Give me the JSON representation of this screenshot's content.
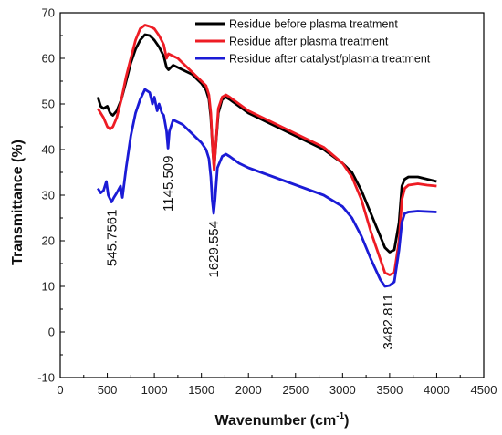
{
  "chart_data": {
    "type": "line",
    "xlabel": "Wavenumber (cm",
    "xlabel_sup": "-1",
    "xlabel_close": ")",
    "ylabel": "Transmittance (%)",
    "xlim": [
      0,
      4500
    ],
    "ylim": [
      -10,
      70
    ],
    "x_ticks": [
      0,
      500,
      1000,
      1500,
      2000,
      2500,
      3000,
      3500,
      4000,
      4500
    ],
    "y_ticks": [
      -10,
      0,
      10,
      20,
      30,
      40,
      50,
      60,
      70
    ],
    "grid": false,
    "legend_position": "top-right",
    "series": [
      {
        "name": "Residue before plasma treatment",
        "color": "#000000",
        "points": [
          [
            400,
            51.5
          ],
          [
            430,
            49.5
          ],
          [
            460,
            49
          ],
          [
            500,
            49.5
          ],
          [
            530,
            48
          ],
          [
            560,
            47.5
          ],
          [
            600,
            48.5
          ],
          [
            650,
            51
          ],
          [
            700,
            55
          ],
          [
            750,
            59
          ],
          [
            800,
            62
          ],
          [
            850,
            64
          ],
          [
            900,
            65.2
          ],
          [
            950,
            65
          ],
          [
            1000,
            64
          ],
          [
            1050,
            62.5
          ],
          [
            1100,
            60.5
          ],
          [
            1130,
            58
          ],
          [
            1150,
            57.5
          ],
          [
            1200,
            58.5
          ],
          [
            1250,
            58
          ],
          [
            1300,
            57.5
          ],
          [
            1350,
            57
          ],
          [
            1400,
            56.5
          ],
          [
            1450,
            55.5
          ],
          [
            1500,
            54.5
          ],
          [
            1550,
            53
          ],
          [
            1580,
            51
          ],
          [
            1600,
            47
          ],
          [
            1620,
            40
          ],
          [
            1635,
            36
          ],
          [
            1650,
            40
          ],
          [
            1680,
            48
          ],
          [
            1720,
            51
          ],
          [
            1760,
            51.5
          ],
          [
            1800,
            51
          ],
          [
            1900,
            49.5
          ],
          [
            2000,
            48
          ],
          [
            2200,
            46
          ],
          [
            2400,
            44
          ],
          [
            2600,
            42
          ],
          [
            2800,
            40
          ],
          [
            3000,
            37
          ],
          [
            3100,
            35
          ],
          [
            3200,
            31
          ],
          [
            3300,
            26
          ],
          [
            3400,
            21
          ],
          [
            3450,
            18.5
          ],
          [
            3500,
            17.5
          ],
          [
            3550,
            18
          ],
          [
            3600,
            24
          ],
          [
            3630,
            32
          ],
          [
            3660,
            33.5
          ],
          [
            3700,
            34
          ],
          [
            3800,
            34
          ],
          [
            3900,
            33.5
          ],
          [
            4000,
            33
          ]
        ]
      },
      {
        "name": "Residue after plasma treatment",
        "color": "#ee1c24",
        "points": [
          [
            400,
            49
          ],
          [
            430,
            48
          ],
          [
            460,
            47
          ],
          [
            500,
            45
          ],
          [
            530,
            44.5
          ],
          [
            560,
            45
          ],
          [
            600,
            47
          ],
          [
            650,
            51
          ],
          [
            700,
            56
          ],
          [
            750,
            60
          ],
          [
            800,
            64
          ],
          [
            850,
            66.5
          ],
          [
            900,
            67.3
          ],
          [
            950,
            67
          ],
          [
            1000,
            66.5
          ],
          [
            1050,
            65
          ],
          [
            1100,
            63
          ],
          [
            1130,
            60
          ],
          [
            1150,
            61
          ],
          [
            1200,
            60.5
          ],
          [
            1250,
            60
          ],
          [
            1300,
            59
          ],
          [
            1350,
            58
          ],
          [
            1400,
            57
          ],
          [
            1450,
            56
          ],
          [
            1500,
            55
          ],
          [
            1550,
            54
          ],
          [
            1580,
            52
          ],
          [
            1600,
            48
          ],
          [
            1620,
            40
          ],
          [
            1635,
            35.5
          ],
          [
            1650,
            40
          ],
          [
            1680,
            49
          ],
          [
            1720,
            51.5
          ],
          [
            1760,
            52
          ],
          [
            1800,
            51.5
          ],
          [
            1900,
            50
          ],
          [
            2000,
            48.5
          ],
          [
            2200,
            46.5
          ],
          [
            2400,
            44.5
          ],
          [
            2600,
            42.5
          ],
          [
            2800,
            40.5
          ],
          [
            3000,
            37
          ],
          [
            3100,
            34
          ],
          [
            3200,
            29
          ],
          [
            3300,
            22
          ],
          [
            3400,
            16
          ],
          [
            3450,
            13
          ],
          [
            3500,
            12.5
          ],
          [
            3550,
            13
          ],
          [
            3600,
            20
          ],
          [
            3630,
            29
          ],
          [
            3660,
            31.5
          ],
          [
            3700,
            32.2
          ],
          [
            3800,
            32.5
          ],
          [
            3900,
            32.2
          ],
          [
            4000,
            32
          ]
        ]
      },
      {
        "name": "Residue after catalyst/plasma treatment",
        "color": "#1b1bd6",
        "points": [
          [
            400,
            31.5
          ],
          [
            430,
            30.5
          ],
          [
            460,
            31
          ],
          [
            490,
            33
          ],
          [
            510,
            30
          ],
          [
            545,
            28.5
          ],
          [
            570,
            29.5
          ],
          [
            600,
            30.5
          ],
          [
            640,
            32
          ],
          [
            660,
            29.5
          ],
          [
            700,
            36
          ],
          [
            750,
            43
          ],
          [
            800,
            48
          ],
          [
            850,
            51
          ],
          [
            900,
            53.2
          ],
          [
            950,
            52.5
          ],
          [
            980,
            50
          ],
          [
            1000,
            51.5
          ],
          [
            1030,
            48.5
          ],
          [
            1050,
            50
          ],
          [
            1080,
            48
          ],
          [
            1100,
            47.5
          ],
          [
            1130,
            44
          ],
          [
            1145,
            40.3
          ],
          [
            1160,
            44
          ],
          [
            1200,
            46.5
          ],
          [
            1250,
            46
          ],
          [
            1300,
            45.5
          ],
          [
            1350,
            44.5
          ],
          [
            1400,
            43.5
          ],
          [
            1450,
            42.5
          ],
          [
            1500,
            41.5
          ],
          [
            1550,
            40
          ],
          [
            1580,
            38
          ],
          [
            1600,
            34
          ],
          [
            1615,
            29
          ],
          [
            1630,
            26
          ],
          [
            1645,
            29
          ],
          [
            1670,
            36
          ],
          [
            1720,
            38.5
          ],
          [
            1760,
            39
          ],
          [
            1800,
            38.5
          ],
          [
            1900,
            37
          ],
          [
            2000,
            36
          ],
          [
            2200,
            34.5
          ],
          [
            2400,
            33
          ],
          [
            2600,
            31.5
          ],
          [
            2800,
            30
          ],
          [
            3000,
            27.5
          ],
          [
            3100,
            25
          ],
          [
            3200,
            21
          ],
          [
            3300,
            16
          ],
          [
            3400,
            11.5
          ],
          [
            3450,
            10
          ],
          [
            3500,
            10.2
          ],
          [
            3550,
            11
          ],
          [
            3600,
            18
          ],
          [
            3630,
            24
          ],
          [
            3660,
            26
          ],
          [
            3700,
            26.3
          ],
          [
            3800,
            26.5
          ],
          [
            3900,
            26.4
          ],
          [
            4000,
            26.3
          ]
        ]
      }
    ],
    "annotations": [
      {
        "text": "545.7561",
        "x": 545.7561,
        "y": 28.5
      },
      {
        "text": "1145.509",
        "x": 1145.509,
        "y": 40.3
      },
      {
        "text": "1629.554",
        "x": 1629.554,
        "y": 26
      },
      {
        "text": "3482.811",
        "x": 3482.811,
        "y": 10
      }
    ]
  }
}
